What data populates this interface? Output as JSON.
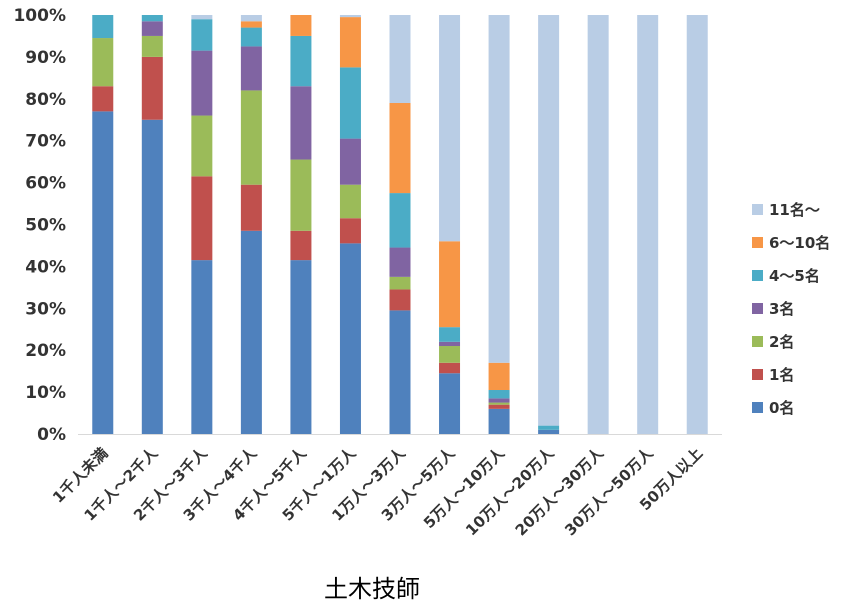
{
  "chart_data": {
    "type": "bar",
    "stacked": true,
    "percent": true,
    "title": "土木技師",
    "xlabel": "",
    "ylabel": "",
    "ylim": [
      0,
      100
    ],
    "yticks": [
      "0%",
      "10%",
      "20%",
      "30%",
      "40%",
      "50%",
      "60%",
      "70%",
      "80%",
      "90%",
      "100%"
    ],
    "categories": [
      "1千人未満",
      "1千人～2千人",
      "2千人～3千人",
      "3千人～4千人",
      "4千人～5千人",
      "5千人～1万人",
      "1万人～3万人",
      "3万人～5万人",
      "5万人～10万人",
      "10万人～20万人",
      "20万人～30万人",
      "30万人～50万人",
      "50万人以上"
    ],
    "series": [
      {
        "name": "0名",
        "color": "#4F81BD",
        "values": [
          77,
          75,
          41.5,
          48.5,
          41.5,
          45.5,
          29.5,
          14.5,
          6,
          1,
          0,
          0,
          0
        ]
      },
      {
        "name": "1名",
        "color": "#C0504D",
        "values": [
          6,
          15,
          20,
          11,
          7,
          6,
          5,
          2.5,
          1,
          0,
          0,
          0,
          0
        ]
      },
      {
        "name": "2名",
        "color": "#9BBB59",
        "values": [
          11.5,
          5,
          14.5,
          22.5,
          17,
          8,
          3,
          4,
          0.5,
          0,
          0,
          0,
          0
        ]
      },
      {
        "name": "3名",
        "color": "#8064A2",
        "values": [
          0,
          3.5,
          15.5,
          10.5,
          17.5,
          11,
          7,
          1,
          1,
          0,
          0,
          0,
          0
        ]
      },
      {
        "name": "4～5名",
        "color": "#4BACC6",
        "values": [
          5.5,
          1.5,
          7.5,
          4.5,
          12,
          17,
          13,
          3.5,
          2,
          1,
          0,
          0,
          0
        ]
      },
      {
        "name": "6～10名",
        "color": "#F79646",
        "values": [
          0,
          0,
          0,
          1.5,
          5,
          12,
          21.5,
          20.5,
          6.5,
          0,
          0,
          0,
          0
        ]
      },
      {
        "name": "11名～",
        "color": "#B9CDE5",
        "values": [
          0,
          0,
          1,
          1.5,
          0,
          0.5,
          21,
          54,
          83,
          98,
          100,
          100,
          100
        ]
      }
    ],
    "legend": "right",
    "grid": false
  }
}
